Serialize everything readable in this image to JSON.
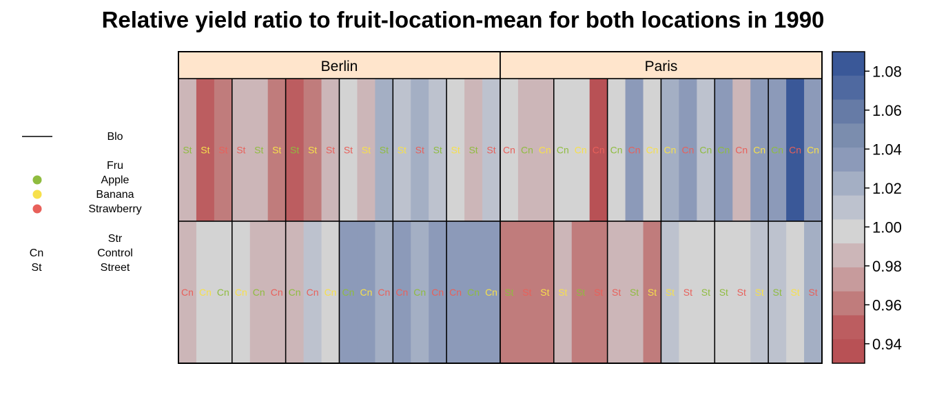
{
  "chart_data": {
    "type": "heatmap",
    "title": "Relative yield ratio to fruit-location-mean for both locations in 1990",
    "panels": [
      "Berlin",
      "Paris"
    ],
    "legend": {
      "block_title": "Blo",
      "fruit_title": "Fru",
      "fruits": [
        {
          "name": "Apple",
          "color": "#8fbc3f"
        },
        {
          "name": "Banana",
          "color": "#f7e04b"
        },
        {
          "name": "Strawberry",
          "color": "#e8605a"
        }
      ],
      "street_title": "Str",
      "streets": [
        {
          "code": "Cn",
          "name": "Control"
        },
        {
          "code": "St",
          "name": "Street"
        }
      ]
    },
    "colorbar": {
      "ticks": [
        "1.08",
        "1.06",
        "1.04",
        "1.02",
        "1.00",
        "0.98",
        "0.96",
        "0.94"
      ],
      "tick_values": [
        1.08,
        1.06,
        1.04,
        1.02,
        1.0,
        0.98,
        0.96,
        0.94
      ],
      "range": [
        0.93,
        1.09
      ],
      "colors": [
        "#b85155",
        "#bc5d60",
        "#c07c7c",
        "#c79b9c",
        "#ccb6b8",
        "#d3d3d3",
        "#bdc2ce",
        "#a4afc4",
        "#8c9ab9",
        "#7b8dae",
        "#667ba6",
        "#4f69a0",
        "#3a5898"
      ]
    },
    "fruit_colors": {
      "A": "#8fbc3f",
      "B": "#f7e04b",
      "S": "#e8605a"
    },
    "rows": [
      {
        "panel": "Berlin",
        "row": "top",
        "blocks": [
          {
            "cells": [
              {
                "fruit": "A",
                "code": "St",
                "value": 0.98
              },
              {
                "fruit": "B",
                "code": "St",
                "value": 0.95
              },
              {
                "fruit": "S",
                "code": "St",
                "value": 0.965
              }
            ]
          },
          {
            "cells": [
              {
                "fruit": "S",
                "code": "St",
                "value": 0.98
              },
              {
                "fruit": "A",
                "code": "St",
                "value": 0.98
              },
              {
                "fruit": "B",
                "code": "St",
                "value": 0.965
              }
            ]
          },
          {
            "cells": [
              {
                "fruit": "A",
                "code": "St",
                "value": 0.95
              },
              {
                "fruit": "B",
                "code": "St",
                "value": 0.965
              },
              {
                "fruit": "S",
                "code": "St",
                "value": 0.98
              }
            ]
          },
          {
            "cells": [
              {
                "fruit": "S",
                "code": "St",
                "value": 1.0
              },
              {
                "fruit": "B",
                "code": "St",
                "value": 0.99
              },
              {
                "fruit": "A",
                "code": "St",
                "value": 1.02
              }
            ]
          },
          {
            "cells": [
              {
                "fruit": "B",
                "code": "St",
                "value": 1.01
              },
              {
                "fruit": "S",
                "code": "St",
                "value": 1.02
              },
              {
                "fruit": "A",
                "code": "St",
                "value": 1.01
              }
            ]
          },
          {
            "cells": [
              {
                "fruit": "B",
                "code": "St",
                "value": 1.0
              },
              {
                "fruit": "A",
                "code": "St",
                "value": 0.99
              },
              {
                "fruit": "S",
                "code": "St",
                "value": 1.01
              }
            ]
          }
        ]
      },
      {
        "panel": "Berlin",
        "row": "bottom",
        "blocks": [
          {
            "cells": [
              {
                "fruit": "S",
                "code": "Cn",
                "value": 0.99
              },
              {
                "fruit": "B",
                "code": "Cn",
                "value": 1.0
              },
              {
                "fruit": "A",
                "code": "Cn",
                "value": 1.0
              }
            ]
          },
          {
            "cells": [
              {
                "fruit": "B",
                "code": "Cn",
                "value": 1.0
              },
              {
                "fruit": "A",
                "code": "Cn",
                "value": 0.98
              },
              {
                "fruit": "S",
                "code": "Cn",
                "value": 0.98
              }
            ]
          },
          {
            "cells": [
              {
                "fruit": "A",
                "code": "Cn",
                "value": 0.99
              },
              {
                "fruit": "S",
                "code": "Cn",
                "value": 1.01
              },
              {
                "fruit": "B",
                "code": "Cn",
                "value": 1.0
              }
            ]
          },
          {
            "cells": [
              {
                "fruit": "A",
                "code": "Cn",
                "value": 1.03
              },
              {
                "fruit": "B",
                "code": "Cn",
                "value": 1.04
              },
              {
                "fruit": "S",
                "code": "Cn",
                "value": 1.02
              }
            ]
          },
          {
            "cells": [
              {
                "fruit": "S",
                "code": "Cn",
                "value": 1.03
              },
              {
                "fruit": "A",
                "code": "Cn",
                "value": 1.02
              },
              {
                "fruit": "S",
                "code": "Cn",
                "value": 1.03
              }
            ]
          },
          {
            "cells": [
              {
                "fruit": "S",
                "code": "Cn",
                "value": 1.04
              },
              {
                "fruit": "A",
                "code": "Cn",
                "value": 1.03
              },
              {
                "fruit": "B",
                "code": "Cn",
                "value": 1.03
              }
            ]
          }
        ]
      },
      {
        "panel": "Paris",
        "row": "top",
        "blocks": [
          {
            "cells": [
              {
                "fruit": "S",
                "code": "Cn",
                "value": 1.0
              },
              {
                "fruit": "A",
                "code": "Cn",
                "value": 0.98
              },
              {
                "fruit": "B",
                "code": "Cn",
                "value": 0.98
              }
            ]
          },
          {
            "cells": [
              {
                "fruit": "A",
                "code": "Cn",
                "value": 1.0
              },
              {
                "fruit": "B",
                "code": "Cn",
                "value": 1.0
              },
              {
                "fruit": "S",
                "code": "Cn",
                "value": 0.94
              }
            ]
          },
          {
            "cells": [
              {
                "fruit": "A",
                "code": "Cn",
                "value": 1.0
              },
              {
                "fruit": "S",
                "code": "Cn",
                "value": 1.03
              },
              {
                "fruit": "B",
                "code": "Cn",
                "value": 1.0
              }
            ]
          },
          {
            "cells": [
              {
                "fruit": "B",
                "code": "Cn",
                "value": 1.02
              },
              {
                "fruit": "S",
                "code": "Cn",
                "value": 1.03
              },
              {
                "fruit": "A",
                "code": "Cn",
                "value": 1.01
              }
            ]
          },
          {
            "cells": [
              {
                "fruit": "A",
                "code": "Cn",
                "value": 1.04
              },
              {
                "fruit": "S",
                "code": "Cn",
                "value": 0.99
              },
              {
                "fruit": "B",
                "code": "Cn",
                "value": 1.03
              }
            ]
          },
          {
            "cells": [
              {
                "fruit": "A",
                "code": "Cn",
                "value": 1.03
              },
              {
                "fruit": "S",
                "code": "Cn",
                "value": 1.08
              },
              {
                "fruit": "B",
                "code": "Cn",
                "value": 1.03
              }
            ]
          }
        ]
      },
      {
        "panel": "Paris",
        "row": "bottom",
        "blocks": [
          {
            "cells": [
              {
                "fruit": "A",
                "code": "St",
                "value": 0.965
              },
              {
                "fruit": "S",
                "code": "St",
                "value": 0.965
              },
              {
                "fruit": "B",
                "code": "St",
                "value": 0.965
              }
            ]
          },
          {
            "cells": [
              {
                "fruit": "B",
                "code": "St",
                "value": 0.98
              },
              {
                "fruit": "A",
                "code": "St",
                "value": 0.965
              },
              {
                "fruit": "S",
                "code": "St",
                "value": 0.965
              }
            ]
          },
          {
            "cells": [
              {
                "fruit": "S",
                "code": "St",
                "value": 0.98
              },
              {
                "fruit": "A",
                "code": "St",
                "value": 0.98
              },
              {
                "fruit": "B",
                "code": "St",
                "value": 0.965
              }
            ]
          },
          {
            "cells": [
              {
                "fruit": "B",
                "code": "St",
                "value": 1.01
              },
              {
                "fruit": "S",
                "code": "St",
                "value": 1.0
              },
              {
                "fruit": "A",
                "code": "St",
                "value": 1.0
              }
            ]
          },
          {
            "cells": [
              {
                "fruit": "A",
                "code": "St",
                "value": 1.0
              },
              {
                "fruit": "S",
                "code": "St",
                "value": 1.0
              },
              {
                "fruit": "B",
                "code": "St",
                "value": 1.01
              }
            ]
          },
          {
            "cells": [
              {
                "fruit": "A",
                "code": "St",
                "value": 1.01
              },
              {
                "fruit": "B",
                "code": "St",
                "value": 1.0
              },
              {
                "fruit": "S",
                "code": "St",
                "value": 1.02
              }
            ]
          }
        ]
      }
    ]
  }
}
